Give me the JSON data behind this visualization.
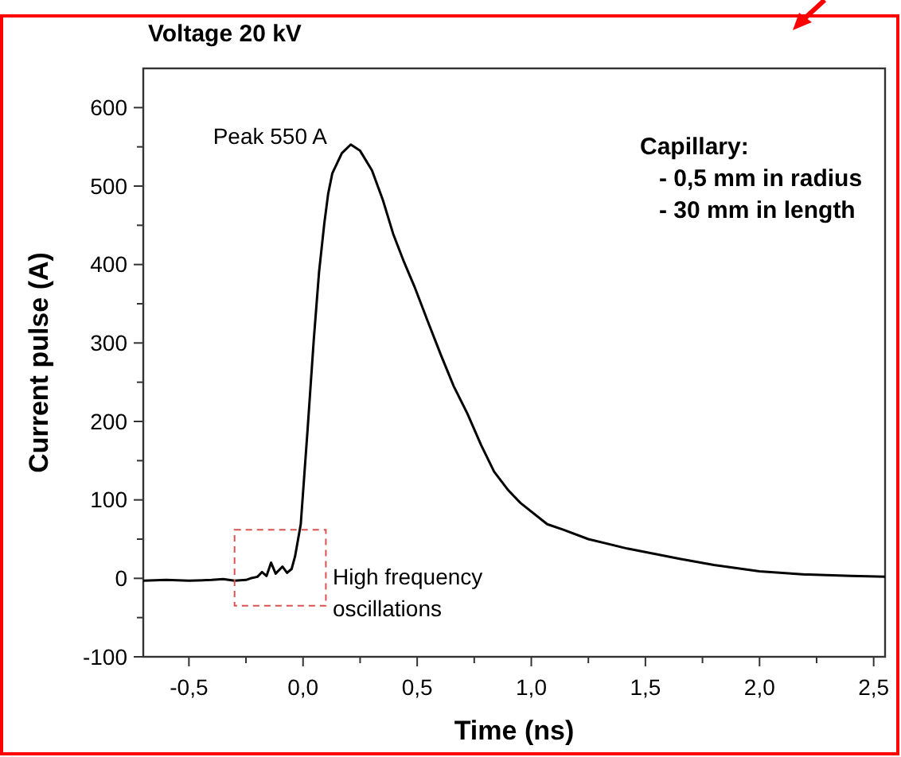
{
  "chart_data": {
    "type": "line",
    "title": "Voltage 20 kV",
    "xlabel": "Time (ns)",
    "ylabel": "Current pulse (A)",
    "xlim": [
      -0.7,
      2.55
    ],
    "ylim": [
      -100,
      650
    ],
    "xticks": [
      {
        "value": -0.5,
        "label": "-0,5"
      },
      {
        "value": -0.25,
        "label": null
      },
      {
        "value": 0,
        "label": "0,0"
      },
      {
        "value": 0.25,
        "label": null
      },
      {
        "value": 0.5,
        "label": "0,5"
      },
      {
        "value": 0.75,
        "label": null
      },
      {
        "value": 1,
        "label": "1,0"
      },
      {
        "value": 1.25,
        "label": null
      },
      {
        "value": 1.5,
        "label": "1,5"
      },
      {
        "value": 1.75,
        "label": null
      },
      {
        "value": 2,
        "label": "2,0"
      },
      {
        "value": 2.25,
        "label": null
      },
      {
        "value": 2.5,
        "label": "2,5"
      }
    ],
    "yticks": [
      -100,
      {
        "value": -50,
        "label": null
      },
      0,
      {
        "value": 50,
        "label": null
      },
      100,
      {
        "value": 150,
        "label": null
      },
      200,
      {
        "value": 250,
        "label": null
      },
      300,
      {
        "value": 350,
        "label": null
      },
      400,
      {
        "value": 450,
        "label": null
      },
      500,
      {
        "value": 550,
        "label": null
      },
      600
    ],
    "grid": false,
    "marker": "none",
    "line_style": "solid",
    "series": [
      {
        "color": "#000000",
        "x": [
          -0.7,
          -0.6,
          -0.5,
          -0.4,
          -0.35,
          -0.3,
          -0.25,
          -0.23,
          -0.2,
          -0.18,
          -0.16,
          -0.14,
          -0.12,
          -0.09,
          -0.07,
          -0.05,
          -0.035,
          -0.01,
          0.02,
          0.047,
          0.07,
          0.093,
          0.11,
          0.128,
          0.17,
          0.209,
          0.25,
          0.302,
          0.35,
          0.395,
          0.44,
          0.488,
          0.55,
          0.605,
          0.66,
          0.72,
          0.78,
          0.837,
          0.9,
          0.953,
          1.07,
          1.14,
          1.25,
          1.42,
          1.65,
          1.8,
          2.0,
          2.2,
          2.4,
          2.55
        ],
        "values": [
          -3,
          -2,
          -3,
          -2,
          -1,
          -3,
          -2,
          0,
          2,
          8,
          3,
          20,
          6,
          15,
          7,
          12,
          28,
          69,
          190,
          304,
          390,
          452,
          490,
          516,
          542,
          553,
          545,
          520,
          482,
          439,
          405,
          372,
          325,
          284,
          245,
          210,
          170,
          136,
          112,
          96,
          69,
          62,
          50,
          38,
          25,
          17,
          9,
          5,
          3,
          2
        ]
      }
    ],
    "annotations": [
      {
        "text": "Peak 550 A",
        "x": 0.21,
        "y": 550
      },
      "Capillary:",
      "- 0,5 mm in radius",
      "- 30 mm in length",
      "High frequency oscillations"
    ]
  }
}
